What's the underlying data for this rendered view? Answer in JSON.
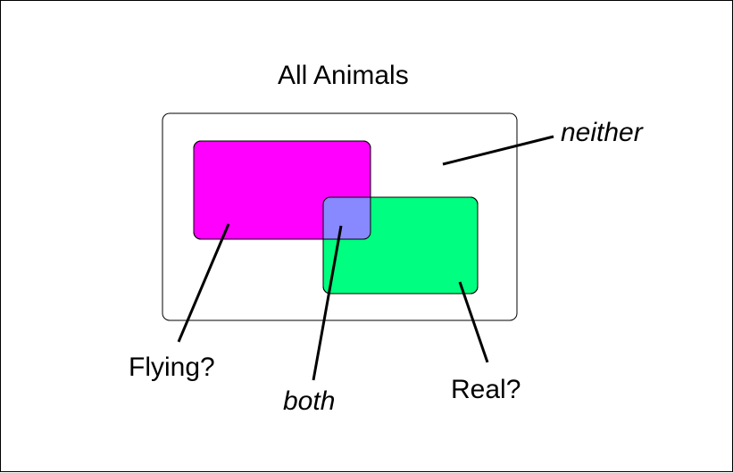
{
  "diagram": {
    "title": "All Animals",
    "labels": {
      "neither": "neither",
      "flying": "Flying?",
      "both": "both",
      "real": "Real?"
    },
    "colors": {
      "flying": "#ff00ff",
      "real": "#00ff80",
      "both": "#8888ff",
      "outline": "#000000"
    }
  }
}
